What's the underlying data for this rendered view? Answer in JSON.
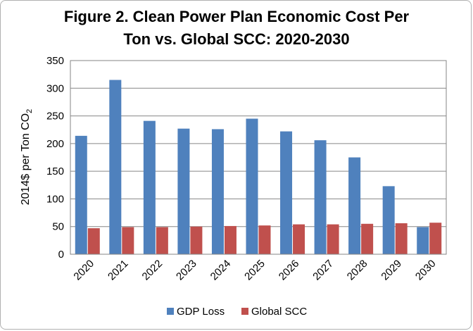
{
  "chart_data": {
    "type": "bar",
    "title_line1": "Figure 2. Clean Power Plan Economic Cost Per",
    "title_line2": "Ton vs. Global SCC: 2020-2030",
    "ylabel_prefix": "2014$ per Ton CO",
    "ylabel_subscript": "2",
    "xlabel": "",
    "ylim": [
      0,
      350
    ],
    "ytick_step": 50,
    "yticks": [
      "0",
      "50",
      "100",
      "150",
      "200",
      "250",
      "300",
      "350"
    ],
    "grid": true,
    "legend_position": "bottom",
    "categories": [
      "2020",
      "2021",
      "2022",
      "2023",
      "2024",
      "2025",
      "2026",
      "2027",
      "2028",
      "2029",
      "2030"
    ],
    "series": [
      {
        "name": "GDP Loss",
        "color": "#4f81bd",
        "values": [
          214,
          315,
          241,
          227,
          226,
          245,
          222,
          206,
          175,
          123,
          49
        ]
      },
      {
        "name": "Global SCC",
        "color": "#c0504d",
        "values": [
          47,
          49,
          49,
          50,
          51,
          52,
          54,
          54,
          55,
          56,
          57
        ]
      }
    ]
  }
}
